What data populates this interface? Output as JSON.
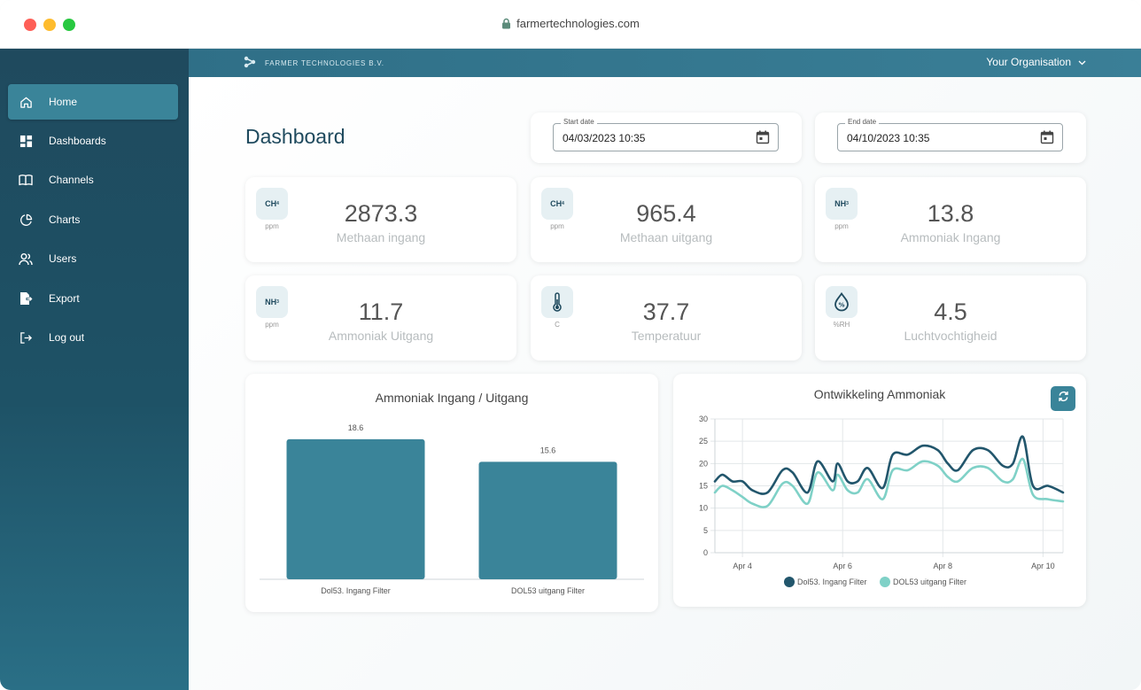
{
  "browser": {
    "url": "farmertechnologies.com"
  },
  "topbar": {
    "brand": "FARMER TECHNOLOGIES B.V.",
    "organisation": "Your Organisation"
  },
  "sidebar": {
    "items": [
      {
        "label": "Home",
        "icon": "home-icon"
      },
      {
        "label": "Dashboards",
        "icon": "dashboard-icon"
      },
      {
        "label": "Channels",
        "icon": "book-icon"
      },
      {
        "label": "Charts",
        "icon": "pie-chart-icon"
      },
      {
        "label": "Users",
        "icon": "users-icon"
      },
      {
        "label": "Export",
        "icon": "export-icon"
      },
      {
        "label": "Log out",
        "icon": "logout-icon"
      }
    ]
  },
  "main": {
    "title": "Dashboard",
    "start_date": {
      "label": "Start date",
      "value": "04/03/2023 10:35"
    },
    "end_date": {
      "label": "End date",
      "value": "04/10/2023 10:35"
    },
    "stats": [
      {
        "badge": "CH",
        "sub": "4",
        "unit": "ppm",
        "value": "2873.3",
        "label": "Methaan ingang"
      },
      {
        "badge": "CH",
        "sub": "4",
        "unit": "ppm",
        "value": "965.4",
        "label": "Methaan uitgang"
      },
      {
        "badge": "NH",
        "sub": "3",
        "unit": "ppm",
        "value": "13.8",
        "label": "Ammoniak Ingang"
      },
      {
        "badge": "NH",
        "sub": "3",
        "unit": "ppm",
        "value": "11.7",
        "label": "Ammoniak Uitgang"
      },
      {
        "badge": "",
        "sub": "",
        "unit": "C",
        "value": "37.7",
        "label": "Temperatuur"
      },
      {
        "badge": "",
        "sub": "",
        "unit": "%RH",
        "value": "4.5",
        "label": "Luchtvochtigheid"
      }
    ]
  },
  "colors": {
    "accent": "#3a8499",
    "dark": "#1f4a5e",
    "series1": "#22566c",
    "series2": "#7fd1c7"
  },
  "chart_data": [
    {
      "type": "bar",
      "title": "Ammoniak Ingang / Uitgang",
      "categories": [
        "Dol53. Ingang Filter",
        "DOL53 uitgang Filter"
      ],
      "values": [
        18.6,
        15.6
      ],
      "value_labels": [
        "18.6",
        "15.6"
      ],
      "ylim": [
        0,
        20
      ],
      "color": "#3a8499"
    },
    {
      "type": "line",
      "title": "Ontwikkeling Ammoniak",
      "x_ticks": [
        "Apr 4",
        "Apr 6",
        "Apr 8",
        "Apr 10"
      ],
      "x_tick_values": [
        4,
        6,
        8,
        10
      ],
      "xlim": [
        3.45,
        10.4
      ],
      "y_ticks": [
        "0",
        "5",
        "10",
        "15",
        "20",
        "25",
        "30"
      ],
      "ylim": [
        0,
        30
      ],
      "grid": true,
      "legend": "bottom",
      "x": [
        3.45,
        3.6,
        3.8,
        4.0,
        4.2,
        4.5,
        4.8,
        5.0,
        5.3,
        5.5,
        5.8,
        5.9,
        6.1,
        6.3,
        6.5,
        6.8,
        7.0,
        7.3,
        7.6,
        7.9,
        8.1,
        8.3,
        8.6,
        8.9,
        9.2,
        9.4,
        9.6,
        9.8,
        10.1,
        10.4
      ],
      "series": [
        {
          "name": "Dol53. Ingang Filter",
          "color": "#22566c",
          "values": [
            16,
            17.5,
            16,
            16,
            14,
            13.5,
            18.5,
            18,
            13.5,
            20.5,
            16,
            20,
            16,
            16,
            19,
            14.5,
            22,
            22,
            24,
            23,
            20,
            18.5,
            23,
            23,
            19.5,
            20,
            26,
            15,
            15,
            13.5
          ]
        },
        {
          "name": "DOL53 uitgang Filter",
          "color": "#7fd1c7",
          "values": [
            13.5,
            15,
            14,
            12.5,
            11,
            10.5,
            15.5,
            15,
            11,
            18,
            14,
            17.5,
            14,
            13.5,
            16.5,
            12,
            18.5,
            18.5,
            20.5,
            19.5,
            17,
            16,
            19,
            19,
            16,
            16.5,
            21,
            13,
            12,
            11.5
          ]
        }
      ]
    }
  ]
}
